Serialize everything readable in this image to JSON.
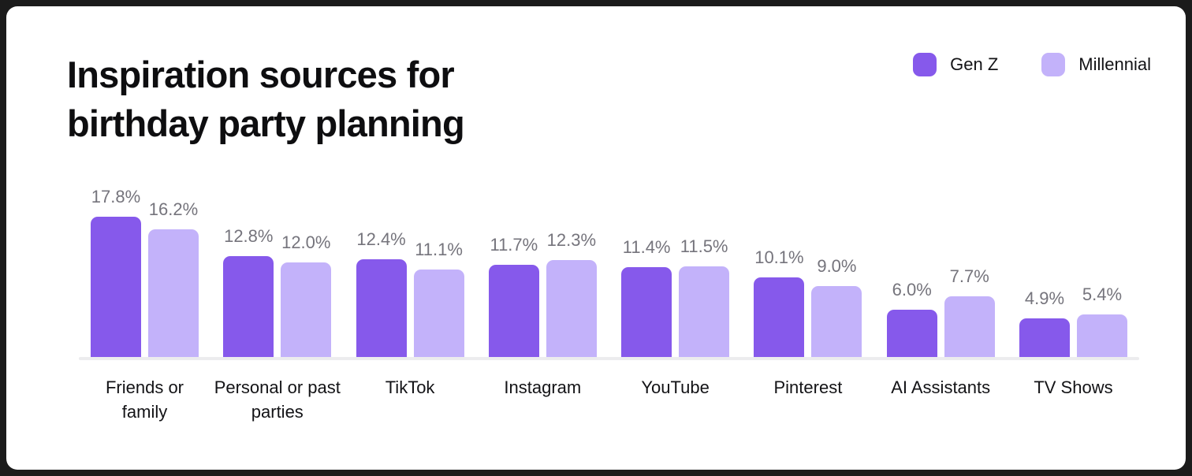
{
  "frame": {
    "background_color": "#1B1B1B",
    "card_color": "#FFFFFF"
  },
  "title": {
    "text": "Inspiration sources for birthday party planning",
    "lines": [
      "Inspiration sources for",
      "birthday party planning"
    ]
  },
  "legend": [
    {
      "label": "Gen Z",
      "color": "#8659EB"
    },
    {
      "label": "Millennial",
      "color": "#C3B2FA"
    }
  ],
  "chart_data": {
    "type": "bar",
    "title": "Inspiration sources for birthday party planning",
    "categories": [
      "Friends or family",
      "Personal or past parties",
      "TikTok",
      "Instagram",
      "YouTube",
      "Pinterest",
      "AI Assistants",
      "TV Shows"
    ],
    "category_lines": [
      [
        "Friends or",
        "family"
      ],
      [
        "Personal or past",
        "parties"
      ],
      [
        "TikTok"
      ],
      [
        "Instagram"
      ],
      [
        "YouTube"
      ],
      [
        "Pinterest"
      ],
      [
        "AI Assistants"
      ],
      [
        "TV Shows"
      ]
    ],
    "series": [
      {
        "name": "Gen Z",
        "color": "#8659EB",
        "values": [
          17.8,
          12.8,
          12.4,
          11.7,
          11.4,
          10.1,
          6.0,
          4.9
        ]
      },
      {
        "name": "Millennial",
        "color": "#C3B2FA",
        "values": [
          16.2,
          12.0,
          11.1,
          12.3,
          11.5,
          9.0,
          7.7,
          5.4
        ]
      }
    ],
    "value_suffix": "%",
    "value_decimals": 1,
    "xlabel": "",
    "ylabel": "",
    "ylim": [
      0,
      18
    ],
    "grid": false,
    "axis_line_color": "#ECECEE",
    "value_label_color": "#75747C",
    "legend_position": "top-right"
  }
}
